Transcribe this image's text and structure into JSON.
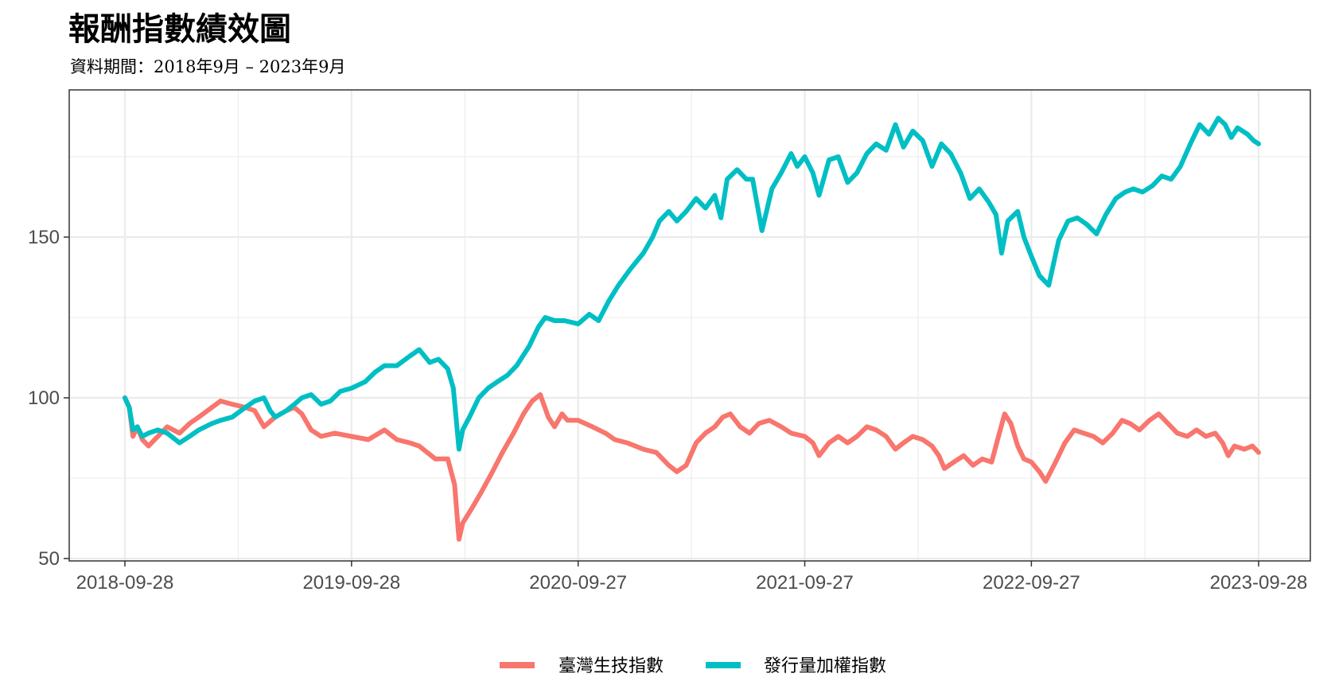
{
  "title": "報酬指數績效圖",
  "subtitle": "資料期間：2018年9月 – 2023年9月",
  "colors": {
    "biotech": "#F8766D",
    "weighted": "#00BFC4",
    "grid": "#ebebeb",
    "panel_border": "#333333"
  },
  "chart_data": {
    "type": "line",
    "x_range": [
      "2018-09-28",
      "2023-09-28"
    ],
    "ylim": [
      50,
      190
    ],
    "y_ticks": [
      50,
      100,
      150
    ],
    "x_ticks": [
      "2018-09-28",
      "2019-09-28",
      "2020-09-27",
      "2021-09-27",
      "2022-09-27",
      "2023-09-28"
    ],
    "grid": true,
    "legend_position": "bottom",
    "series": [
      {
        "name": "臺灣生技指數",
        "color": "#F8766D",
        "points": [
          [
            "2018-09-28",
            100
          ],
          [
            "2018-10-05",
            97
          ],
          [
            "2018-10-11",
            88
          ],
          [
            "2018-10-18",
            91
          ],
          [
            "2018-10-26",
            87
          ],
          [
            "2018-11-05",
            85
          ],
          [
            "2018-11-20",
            88
          ],
          [
            "2018-12-05",
            91
          ],
          [
            "2018-12-25",
            89
          ],
          [
            "2019-01-10",
            92
          ],
          [
            "2019-01-25",
            94
          ],
          [
            "2019-02-15",
            97
          ],
          [
            "2019-03-01",
            99
          ],
          [
            "2019-03-20",
            98
          ],
          [
            "2019-04-10",
            97
          ],
          [
            "2019-04-25",
            96
          ],
          [
            "2019-05-10",
            91
          ],
          [
            "2019-05-28",
            94
          ],
          [
            "2019-06-15",
            96
          ],
          [
            "2019-06-28",
            97
          ],
          [
            "2019-07-10",
            95
          ],
          [
            "2019-07-25",
            90
          ],
          [
            "2019-08-10",
            88
          ],
          [
            "2019-09-01",
            89
          ],
          [
            "2019-09-28",
            88
          ],
          [
            "2019-10-25",
            87
          ],
          [
            "2019-11-20",
            90
          ],
          [
            "2019-12-10",
            87
          ],
          [
            "2019-12-31",
            86
          ],
          [
            "2020-01-15",
            85
          ],
          [
            "2020-02-10",
            81
          ],
          [
            "2020-03-01",
            81
          ],
          [
            "2020-03-12",
            73
          ],
          [
            "2020-03-19",
            56
          ],
          [
            "2020-03-25",
            61
          ],
          [
            "2020-04-10",
            66
          ],
          [
            "2020-04-25",
            71
          ],
          [
            "2020-05-12",
            77
          ],
          [
            "2020-05-28",
            83
          ],
          [
            "2020-06-15",
            89
          ],
          [
            "2020-07-01",
            95
          ],
          [
            "2020-07-15",
            99
          ],
          [
            "2020-07-28",
            101
          ],
          [
            "2020-08-10",
            94
          ],
          [
            "2020-08-20",
            91
          ],
          [
            "2020-09-01",
            95
          ],
          [
            "2020-09-10",
            93
          ],
          [
            "2020-09-27",
            93
          ],
          [
            "2020-10-20",
            91
          ],
          [
            "2020-11-10",
            89
          ],
          [
            "2020-11-25",
            87
          ],
          [
            "2020-12-15",
            86
          ],
          [
            "2021-01-10",
            84
          ],
          [
            "2021-01-31",
            83
          ],
          [
            "2021-02-20",
            79
          ],
          [
            "2021-03-05",
            77
          ],
          [
            "2021-03-20",
            79
          ],
          [
            "2021-04-05",
            86
          ],
          [
            "2021-04-20",
            89
          ],
          [
            "2021-05-05",
            91
          ],
          [
            "2021-05-18",
            94
          ],
          [
            "2021-05-30",
            95
          ],
          [
            "2021-06-15",
            91
          ],
          [
            "2021-06-30",
            89
          ],
          [
            "2021-07-15",
            92
          ],
          [
            "2021-08-01",
            93
          ],
          [
            "2021-08-20",
            91
          ],
          [
            "2021-09-05",
            89
          ],
          [
            "2021-09-27",
            88
          ],
          [
            "2021-10-10",
            86
          ],
          [
            "2021-10-20",
            82
          ],
          [
            "2021-11-05",
            86
          ],
          [
            "2021-11-20",
            88
          ],
          [
            "2021-12-05",
            86
          ],
          [
            "2021-12-20",
            88
          ],
          [
            "2022-01-05",
            91
          ],
          [
            "2022-01-20",
            90
          ],
          [
            "2022-02-05",
            88
          ],
          [
            "2022-02-20",
            84
          ],
          [
            "2022-03-05",
            86
          ],
          [
            "2022-03-20",
            88
          ],
          [
            "2022-04-05",
            87
          ],
          [
            "2022-04-20",
            85
          ],
          [
            "2022-05-01",
            82
          ],
          [
            "2022-05-10",
            78
          ],
          [
            "2022-05-25",
            80
          ],
          [
            "2022-06-10",
            82
          ],
          [
            "2022-06-25",
            79
          ],
          [
            "2022-07-10",
            81
          ],
          [
            "2022-07-25",
            80
          ],
          [
            "2022-08-05",
            88
          ],
          [
            "2022-08-15",
            95
          ],
          [
            "2022-08-25",
            92
          ],
          [
            "2022-09-05",
            85
          ],
          [
            "2022-09-15",
            81
          ],
          [
            "2022-09-27",
            80
          ],
          [
            "2022-10-10",
            77
          ],
          [
            "2022-10-20",
            74
          ],
          [
            "2022-11-05",
            80
          ],
          [
            "2022-11-20",
            86
          ],
          [
            "2022-12-05",
            90
          ],
          [
            "2022-12-20",
            89
          ],
          [
            "2023-01-05",
            88
          ],
          [
            "2023-01-20",
            86
          ],
          [
            "2023-02-05",
            89
          ],
          [
            "2023-02-20",
            93
          ],
          [
            "2023-03-05",
            92
          ],
          [
            "2023-03-20",
            90
          ],
          [
            "2023-04-05",
            93
          ],
          [
            "2023-04-20",
            95
          ],
          [
            "2023-05-05",
            92
          ],
          [
            "2023-05-20",
            89
          ],
          [
            "2023-06-05",
            88
          ],
          [
            "2023-06-20",
            90
          ],
          [
            "2023-07-05",
            88
          ],
          [
            "2023-07-20",
            89
          ],
          [
            "2023-08-01",
            86
          ],
          [
            "2023-08-10",
            82
          ],
          [
            "2023-08-20",
            85
          ],
          [
            "2023-09-05",
            84
          ],
          [
            "2023-09-18",
            85
          ],
          [
            "2023-09-28",
            83
          ]
        ]
      },
      {
        "name": "發行量加權指數",
        "color": "#00BFC4",
        "points": [
          [
            "2018-09-28",
            100
          ],
          [
            "2018-10-05",
            97
          ],
          [
            "2018-10-11",
            90
          ],
          [
            "2018-10-18",
            91
          ],
          [
            "2018-10-26",
            88
          ],
          [
            "2018-11-05",
            89
          ],
          [
            "2018-11-20",
            90
          ],
          [
            "2018-12-05",
            89
          ],
          [
            "2018-12-25",
            86
          ],
          [
            "2019-01-10",
            88
          ],
          [
            "2019-01-25",
            90
          ],
          [
            "2019-02-15",
            92
          ],
          [
            "2019-03-01",
            93
          ],
          [
            "2019-03-20",
            94
          ],
          [
            "2019-04-10",
            97
          ],
          [
            "2019-04-25",
            99
          ],
          [
            "2019-05-10",
            100
          ],
          [
            "2019-05-20",
            96
          ],
          [
            "2019-05-28",
            94
          ],
          [
            "2019-06-15",
            96
          ],
          [
            "2019-06-28",
            98
          ],
          [
            "2019-07-10",
            100
          ],
          [
            "2019-07-25",
            101
          ],
          [
            "2019-08-10",
            98
          ],
          [
            "2019-08-25",
            99
          ],
          [
            "2019-09-10",
            102
          ],
          [
            "2019-09-28",
            103
          ],
          [
            "2019-10-20",
            105
          ],
          [
            "2019-11-05",
            108
          ],
          [
            "2019-11-20",
            110
          ],
          [
            "2019-12-10",
            110
          ],
          [
            "2019-12-31",
            113
          ],
          [
            "2020-01-15",
            115
          ],
          [
            "2020-02-01",
            111
          ],
          [
            "2020-02-15",
            112
          ],
          [
            "2020-03-01",
            109
          ],
          [
            "2020-03-10",
            103
          ],
          [
            "2020-03-19",
            84
          ],
          [
            "2020-03-25",
            90
          ],
          [
            "2020-04-05",
            94
          ],
          [
            "2020-04-20",
            100
          ],
          [
            "2020-05-05",
            103
          ],
          [
            "2020-05-20",
            105
          ],
          [
            "2020-06-05",
            107
          ],
          [
            "2020-06-20",
            110
          ],
          [
            "2020-07-10",
            116
          ],
          [
            "2020-07-25",
            122
          ],
          [
            "2020-08-05",
            125
          ],
          [
            "2020-08-20",
            124
          ],
          [
            "2020-09-05",
            124
          ],
          [
            "2020-09-27",
            123
          ],
          [
            "2020-10-15",
            126
          ],
          [
            "2020-10-30",
            124
          ],
          [
            "2020-11-15",
            130
          ],
          [
            "2020-12-01",
            135
          ],
          [
            "2020-12-20",
            140
          ],
          [
            "2021-01-10",
            145
          ],
          [
            "2021-01-25",
            150
          ],
          [
            "2021-02-05",
            155
          ],
          [
            "2021-02-20",
            158
          ],
          [
            "2021-03-05",
            155
          ],
          [
            "2021-03-20",
            158
          ],
          [
            "2021-04-05",
            162
          ],
          [
            "2021-04-20",
            159
          ],
          [
            "2021-05-05",
            163
          ],
          [
            "2021-05-15",
            156
          ],
          [
            "2021-05-25",
            168
          ],
          [
            "2021-06-10",
            171
          ],
          [
            "2021-06-25",
            168
          ],
          [
            "2021-07-05",
            168
          ],
          [
            "2021-07-20",
            152
          ],
          [
            "2021-08-05",
            165
          ],
          [
            "2021-08-20",
            170
          ],
          [
            "2021-09-05",
            176
          ],
          [
            "2021-09-15",
            172
          ],
          [
            "2021-09-27",
            175
          ],
          [
            "2021-10-10",
            170
          ],
          [
            "2021-10-20",
            163
          ],
          [
            "2021-11-05",
            174
          ],
          [
            "2021-11-20",
            175
          ],
          [
            "2021-12-05",
            167
          ],
          [
            "2021-12-20",
            170
          ],
          [
            "2022-01-05",
            176
          ],
          [
            "2022-01-20",
            179
          ],
          [
            "2022-02-05",
            177
          ],
          [
            "2022-02-20",
            185
          ],
          [
            "2022-03-05",
            178
          ],
          [
            "2022-03-20",
            183
          ],
          [
            "2022-04-05",
            180
          ],
          [
            "2022-04-20",
            172
          ],
          [
            "2022-05-05",
            179
          ],
          [
            "2022-05-20",
            176
          ],
          [
            "2022-06-05",
            170
          ],
          [
            "2022-06-20",
            162
          ],
          [
            "2022-07-05",
            165
          ],
          [
            "2022-07-20",
            161
          ],
          [
            "2022-08-01",
            157
          ],
          [
            "2022-08-10",
            145
          ],
          [
            "2022-08-20",
            155
          ],
          [
            "2022-09-05",
            158
          ],
          [
            "2022-09-15",
            150
          ],
          [
            "2022-09-27",
            144
          ],
          [
            "2022-10-10",
            138
          ],
          [
            "2022-10-25",
            135
          ],
          [
            "2022-11-10",
            149
          ],
          [
            "2022-11-25",
            155
          ],
          [
            "2022-12-10",
            156
          ],
          [
            "2022-12-25",
            154
          ],
          [
            "2023-01-10",
            151
          ],
          [
            "2023-01-25",
            157
          ],
          [
            "2023-02-10",
            162
          ],
          [
            "2023-02-25",
            164
          ],
          [
            "2023-03-10",
            165
          ],
          [
            "2023-03-25",
            164
          ],
          [
            "2023-04-10",
            166
          ],
          [
            "2023-04-25",
            169
          ],
          [
            "2023-05-10",
            168
          ],
          [
            "2023-05-25",
            172
          ],
          [
            "2023-06-10",
            179
          ],
          [
            "2023-06-25",
            185
          ],
          [
            "2023-07-10",
            182
          ],
          [
            "2023-07-25",
            187
          ],
          [
            "2023-08-05",
            185
          ],
          [
            "2023-08-15",
            181
          ],
          [
            "2023-08-25",
            184
          ],
          [
            "2023-09-10",
            182
          ],
          [
            "2023-09-20",
            180
          ],
          [
            "2023-09-28",
            179
          ]
        ]
      }
    ]
  }
}
